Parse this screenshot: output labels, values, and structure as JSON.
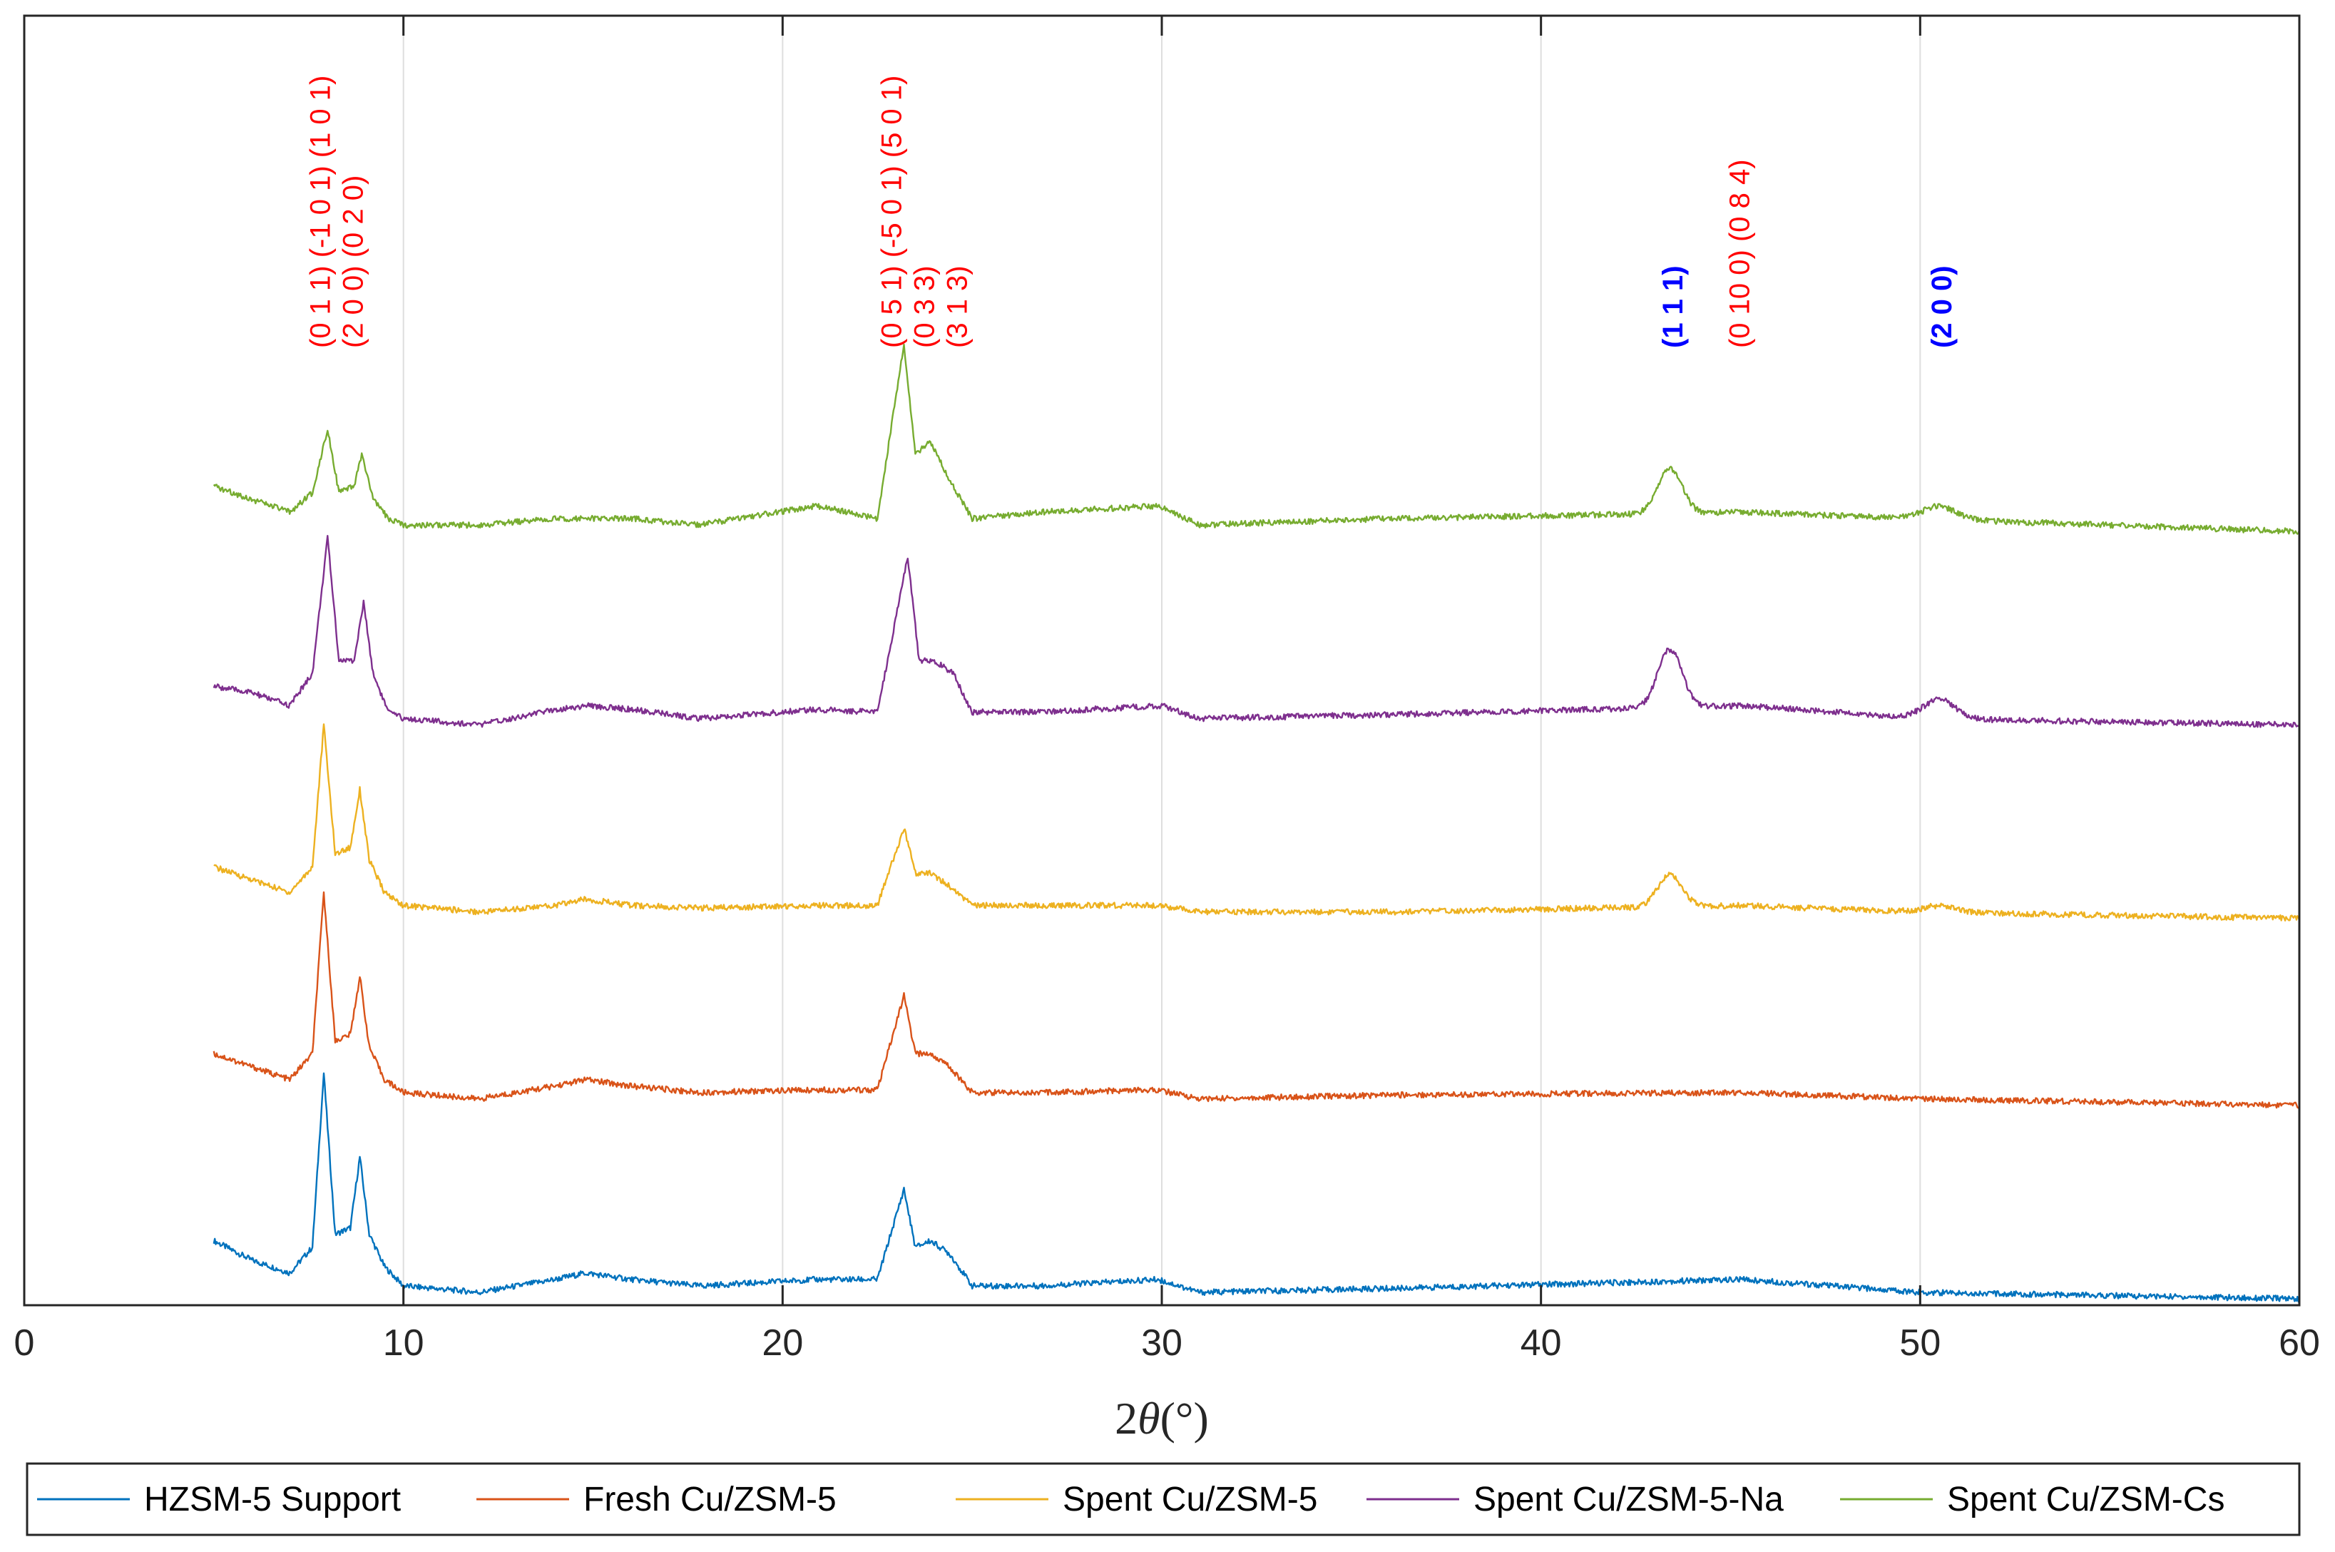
{
  "chart_data": {
    "type": "line",
    "title": "",
    "xlabel_prefix": "2",
    "xlabel_symbol": "θ",
    "xlabel_suffix": "(°)",
    "ylabel": "",
    "xlim": [
      0,
      60
    ],
    "ylim": [
      0,
      10
    ],
    "x_ticks": [
      0,
      10,
      20,
      30,
      40,
      50,
      60
    ],
    "x_tick_labels": [
      "0",
      "10",
      "20",
      "30",
      "40",
      "50",
      "60"
    ],
    "grid": "vertical",
    "legend_position": "bottom",
    "colors": {
      "HZSM-5 Support": "#0072bd",
      "Fresh Cu/ZSM-5": "#d95319",
      "Spent Cu/ZSM-5": "#edb120",
      "Spent Cu/ZSM-5-Na": "#7e2f8e",
      "Spent Cu/ZSM-Cs": "#77ac30"
    },
    "series": [
      {
        "name": "HZSM-5 Support",
        "color": "#0072bd",
        "offset": 0.05,
        "base_start": 0.45,
        "base_end": 0.0,
        "cu": 0,
        "cu2": 0,
        "points": [
          [
            5,
            0.45
          ],
          [
            6,
            0.3
          ],
          [
            7,
            0.2
          ],
          [
            7.6,
            0.4
          ],
          [
            7.9,
            1.75
          ],
          [
            8.2,
            0.5
          ],
          [
            8.6,
            0.55
          ],
          [
            8.85,
            1.1
          ],
          [
            9.1,
            0.5
          ],
          [
            9.5,
            0.25
          ],
          [
            10,
            0.1
          ],
          [
            12,
            0.05
          ],
          [
            14,
            0.15
          ],
          [
            14.8,
            0.2
          ],
          [
            16,
            0.15
          ],
          [
            17.8,
            0.1
          ],
          [
            20.9,
            0.15
          ],
          [
            22.5,
            0.15
          ],
          [
            23.2,
            0.85
          ],
          [
            23.5,
            0.4
          ],
          [
            23.9,
            0.45
          ],
          [
            24.4,
            0.35
          ],
          [
            25,
            0.1
          ],
          [
            26.8,
            0.1
          ],
          [
            29.9,
            0.15
          ],
          [
            31,
            0.05
          ],
          [
            36,
            0.08
          ],
          [
            45.3,
            0.15
          ],
          [
            50,
            0.05
          ],
          [
            60,
            0.0
          ]
        ]
      },
      {
        "name": "Fresh Cu/ZSM-5",
        "color": "#d95319",
        "offset": 1.55,
        "base_start": 0.4,
        "base_end": 0.0,
        "cu": 0,
        "cu2": 0,
        "points": [
          [
            5,
            0.4
          ],
          [
            6,
            0.3
          ],
          [
            7,
            0.2
          ],
          [
            7.6,
            0.4
          ],
          [
            7.9,
            1.65
          ],
          [
            8.2,
            0.5
          ],
          [
            8.6,
            0.55
          ],
          [
            8.85,
            1.0
          ],
          [
            9.1,
            0.45
          ],
          [
            9.5,
            0.2
          ],
          [
            10,
            0.1
          ],
          [
            12,
            0.05
          ],
          [
            14,
            0.15
          ],
          [
            14.8,
            0.2
          ],
          [
            16,
            0.15
          ],
          [
            17.8,
            0.1
          ],
          [
            20.9,
            0.12
          ],
          [
            22.5,
            0.12
          ],
          [
            23.2,
            0.85
          ],
          [
            23.5,
            0.4
          ],
          [
            23.9,
            0.4
          ],
          [
            24.4,
            0.3
          ],
          [
            25,
            0.1
          ],
          [
            26.8,
            0.1
          ],
          [
            29.9,
            0.12
          ],
          [
            31,
            0.05
          ],
          [
            36,
            0.08
          ],
          [
            45.3,
            0.1
          ],
          [
            50,
            0.05
          ],
          [
            60,
            0.0
          ]
        ]
      },
      {
        "name": "Spent Cu/ZSM-5",
        "color": "#edb120",
        "offset": 3.0,
        "base_start": 0.4,
        "base_end": 0.0,
        "cu": 0.25,
        "cu2": 0.05,
        "points": [
          [
            5,
            0.4
          ],
          [
            6,
            0.3
          ],
          [
            7,
            0.2
          ],
          [
            7.6,
            0.4
          ],
          [
            7.9,
            1.5
          ],
          [
            8.2,
            0.5
          ],
          [
            8.6,
            0.55
          ],
          [
            8.85,
            1.0
          ],
          [
            9.1,
            0.45
          ],
          [
            9.5,
            0.2
          ],
          [
            10,
            0.1
          ],
          [
            12,
            0.05
          ],
          [
            14,
            0.1
          ],
          [
            14.8,
            0.15
          ],
          [
            16,
            0.1
          ],
          [
            17.8,
            0.08
          ],
          [
            20.9,
            0.1
          ],
          [
            22.5,
            0.1
          ],
          [
            23.2,
            0.7
          ],
          [
            23.5,
            0.35
          ],
          [
            23.9,
            0.35
          ],
          [
            24.4,
            0.25
          ],
          [
            25,
            0.1
          ],
          [
            26.8,
            0.1
          ],
          [
            29.9,
            0.1
          ],
          [
            31,
            0.05
          ],
          [
            36,
            0.05
          ],
          [
            45.3,
            0.1
          ],
          [
            50,
            0.05
          ],
          [
            60,
            0.0
          ]
        ]
      },
      {
        "name": "Spent Cu/ZSM-5-Na",
        "color": "#7e2f8e",
        "offset": 4.5,
        "base_start": 0.3,
        "base_end": 0.0,
        "cu": 0.45,
        "cu2": 0.15,
        "points": [
          [
            5,
            0.3
          ],
          [
            6,
            0.25
          ],
          [
            7,
            0.15
          ],
          [
            7.6,
            0.4
          ],
          [
            8.0,
            1.45
          ],
          [
            8.3,
            0.5
          ],
          [
            8.7,
            0.5
          ],
          [
            8.95,
            0.95
          ],
          [
            9.2,
            0.4
          ],
          [
            9.6,
            0.1
          ],
          [
            10,
            0.05
          ],
          [
            12,
            0.0
          ],
          [
            14,
            0.12
          ],
          [
            14.9,
            0.15
          ],
          [
            16,
            0.12
          ],
          [
            17.8,
            0.05
          ],
          [
            20.9,
            0.12
          ],
          [
            22.5,
            0.1
          ],
          [
            23.3,
            1.3
          ],
          [
            23.6,
            0.5
          ],
          [
            24.0,
            0.5
          ],
          [
            24.5,
            0.4
          ],
          [
            25,
            0.1
          ],
          [
            26.8,
            0.1
          ],
          [
            30.0,
            0.15
          ],
          [
            31,
            0.05
          ],
          [
            36,
            0.08
          ],
          [
            45.4,
            0.15
          ],
          [
            50,
            0.05
          ],
          [
            60,
            0.0
          ]
        ]
      },
      {
        "name": "Spent Cu/ZSM-Cs",
        "color": "#77ac30",
        "offset": 6.0,
        "base_start": 0.35,
        "base_end": 0.0,
        "cu": 0.35,
        "cu2": 0.1,
        "points": [
          [
            5,
            0.35
          ],
          [
            6,
            0.25
          ],
          [
            7,
            0.15
          ],
          [
            7.6,
            0.3
          ],
          [
            8.0,
            0.8
          ],
          [
            8.3,
            0.3
          ],
          [
            8.7,
            0.35
          ],
          [
            8.9,
            0.6
          ],
          [
            9.2,
            0.25
          ],
          [
            9.6,
            0.1
          ],
          [
            10,
            0.05
          ],
          [
            12,
            0.05
          ],
          [
            14,
            0.1
          ],
          [
            14.9,
            0.1
          ],
          [
            16,
            0.1
          ],
          [
            17.8,
            0.05
          ],
          [
            20.9,
            0.2
          ],
          [
            22.5,
            0.1
          ],
          [
            23.2,
            1.45
          ],
          [
            23.5,
            0.6
          ],
          [
            23.9,
            0.7
          ],
          [
            24.4,
            0.4
          ],
          [
            25,
            0.1
          ],
          [
            26.8,
            0.15
          ],
          [
            29.9,
            0.2
          ],
          [
            31,
            0.05
          ],
          [
            36,
            0.1
          ],
          [
            45.3,
            0.15
          ],
          [
            50,
            0.1
          ],
          [
            60,
            0.0
          ]
        ]
      }
    ],
    "annotations": {
      "red": [
        {
          "x": 8.3,
          "lines": [
            "(0 1 1) (-1 0 1) (1 0 1)",
            "(2 0 0) (0 2 0)"
          ]
        },
        {
          "x": 23.8,
          "lines": [
            "(0 5 1) (-5 0 1) (5 0 1)",
            "(0 3 3)",
            "(3 1 3)"
          ]
        },
        {
          "x": 45.3,
          "lines": [
            "(0 10 0) (0 8 4)"
          ]
        }
      ],
      "blue": [
        {
          "x": 43.5,
          "label": "(1 1 1)"
        },
        {
          "x": 50.6,
          "label": "(2 0 0)"
        }
      ]
    }
  }
}
